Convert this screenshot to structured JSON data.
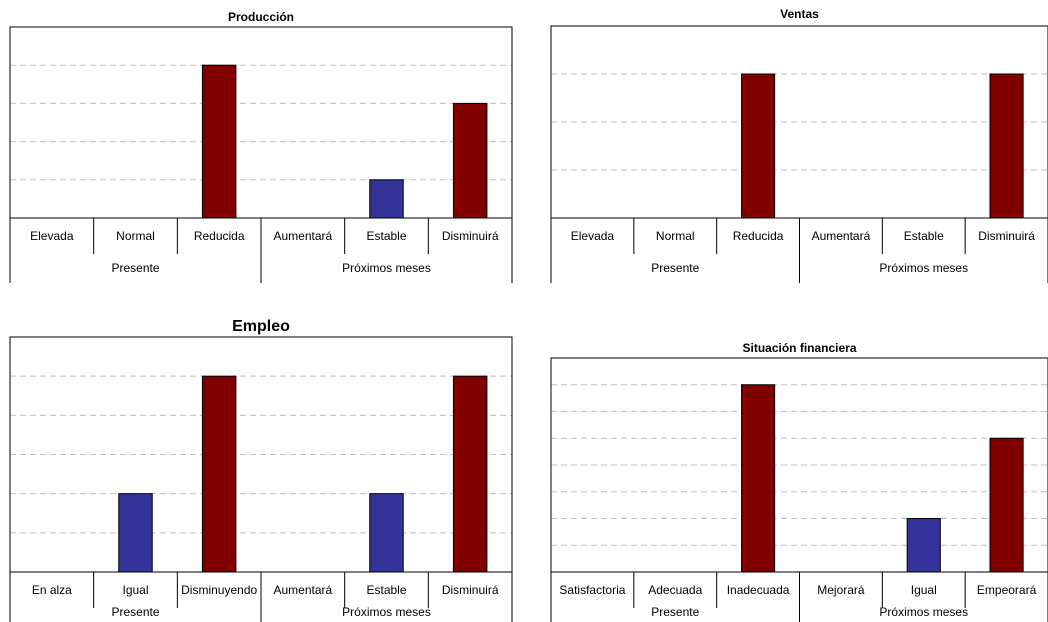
{
  "colors": {
    "blue": "#333399",
    "red": "#800000"
  },
  "chart_data": [
    {
      "type": "bar",
      "title": "Producción",
      "categories": [
        "Elevada",
        "Normal",
        "Reducida",
        "Aumentará",
        "Estable",
        "Disminuirá"
      ],
      "groups": [
        {
          "label": "Presente",
          "span": 3
        },
        {
          "label": "Próximos meses",
          "span": 3
        }
      ],
      "values": [
        0,
        0,
        4,
        0,
        1,
        3
      ],
      "bar_colors": [
        "blue",
        "blue",
        "red",
        "blue",
        "blue",
        "red"
      ],
      "ylim": [
        0,
        5
      ],
      "grid": true
    },
    {
      "type": "bar",
      "title": "Ventas",
      "categories": [
        "Elevada",
        "Normal",
        "Reducida",
        "Aumentará",
        "Estable",
        "Disminuirá"
      ],
      "groups": [
        {
          "label": "Presente",
          "span": 3
        },
        {
          "label": "Próximos meses",
          "span": 3
        }
      ],
      "values": [
        0,
        0,
        3,
        0,
        0,
        3
      ],
      "bar_colors": [
        "blue",
        "blue",
        "red",
        "blue",
        "blue",
        "red"
      ],
      "ylim": [
        0,
        4
      ],
      "grid": true
    },
    {
      "type": "bar",
      "title": "Empleo",
      "categories": [
        "En alza",
        "Igual",
        "Disminuyendo",
        "Aumentará",
        "Estable",
        "Disminuirá"
      ],
      "groups": [
        {
          "label": "Presente",
          "span": 3
        },
        {
          "label": "Próximos meses",
          "span": 3
        }
      ],
      "values": [
        0,
        2,
        5,
        0,
        2,
        5
      ],
      "bar_colors": [
        "blue",
        "blue",
        "red",
        "blue",
        "blue",
        "red"
      ],
      "ylim": [
        0,
        6
      ],
      "grid": true
    },
    {
      "type": "bar",
      "title": "Situación financiera",
      "categories": [
        "Satisfactoria",
        "Adecuada",
        "Inadecuada",
        "Mejorará",
        "Igual",
        "Empeorará"
      ],
      "groups": [
        {
          "label": "Presente",
          "span": 3
        },
        {
          "label": "Próximos meses",
          "span": 3
        }
      ],
      "values": [
        0,
        0,
        7,
        0,
        2,
        5
      ],
      "bar_colors": [
        "blue",
        "blue",
        "red",
        "blue",
        "blue",
        "red"
      ],
      "ylim": [
        0,
        8
      ],
      "grid": true
    }
  ]
}
